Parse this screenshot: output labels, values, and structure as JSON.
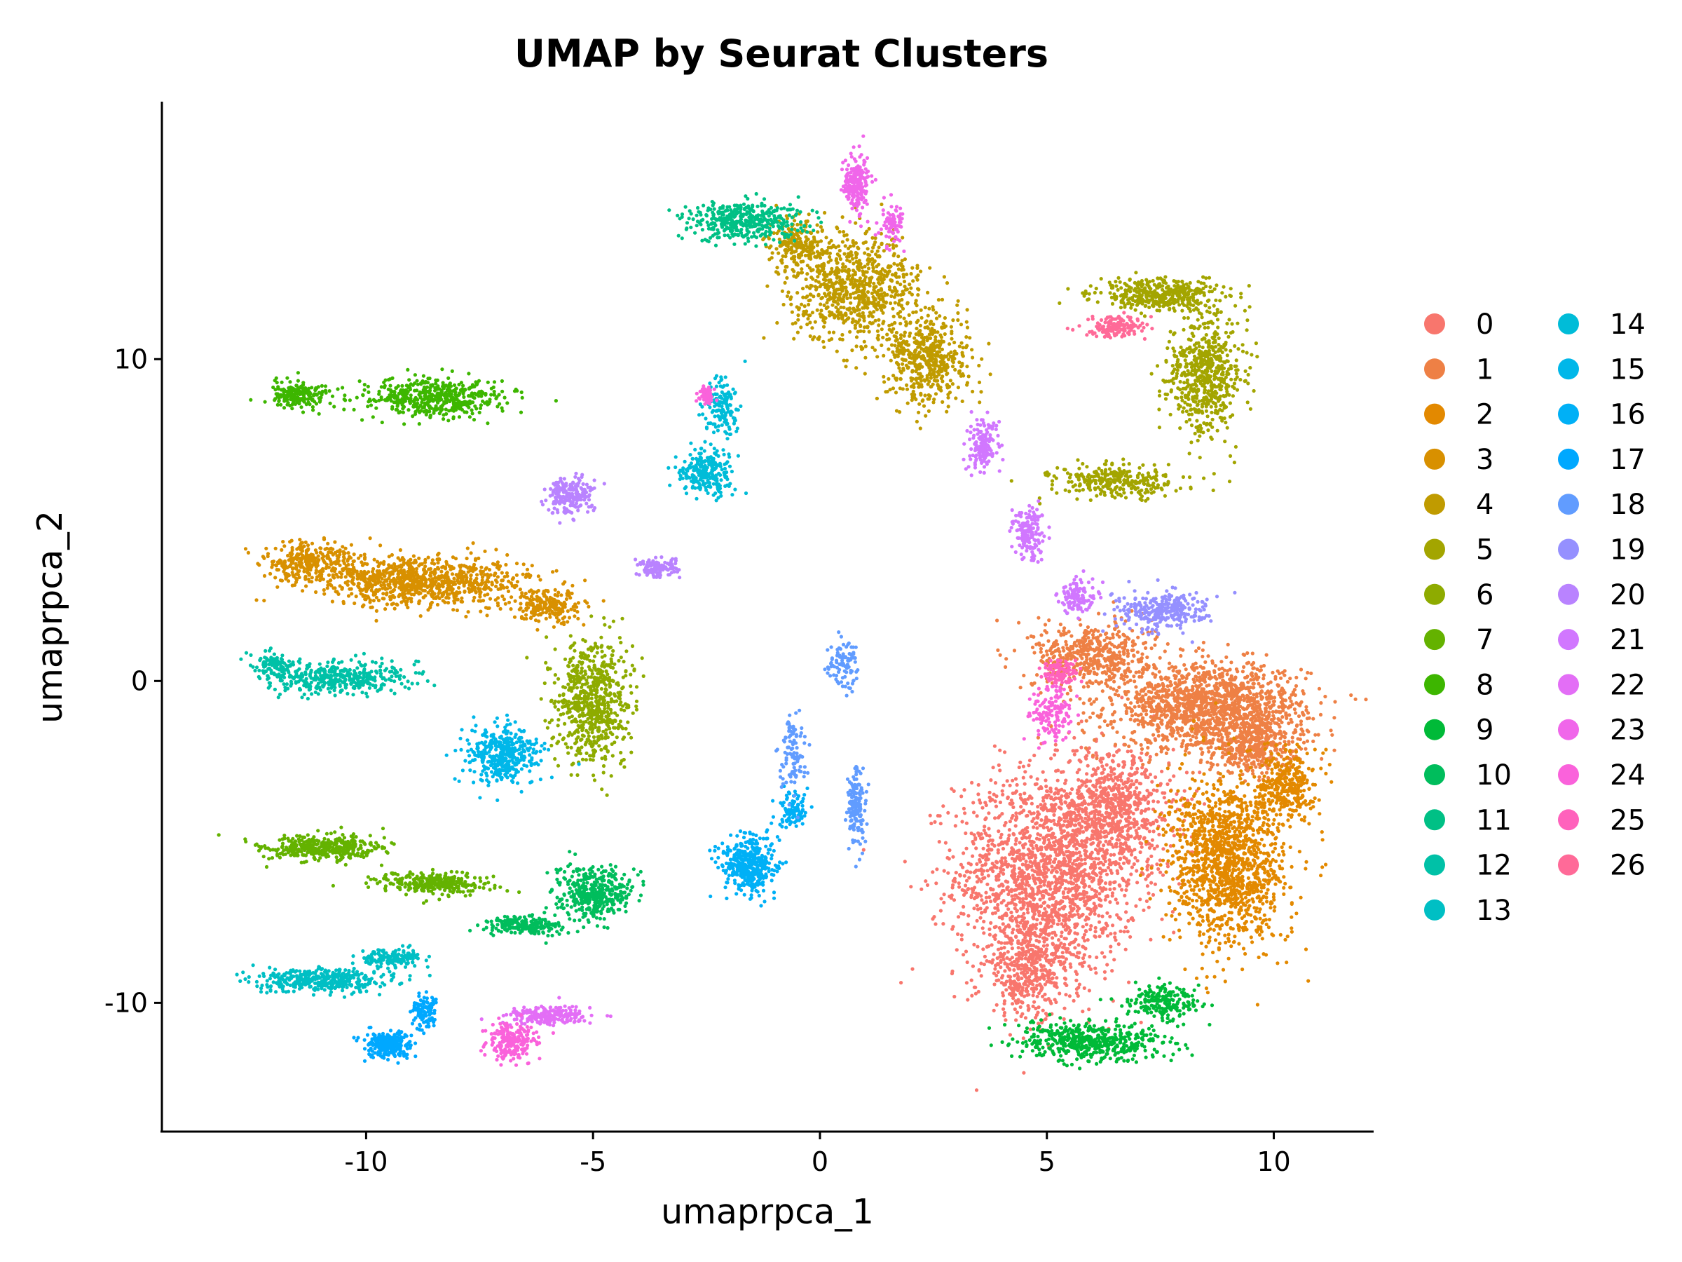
{
  "chart_data": {
    "type": "scatter",
    "title": "UMAP by Seurat Clusters",
    "xlabel": "umaprpca_1",
    "ylabel": "umaprpca_2",
    "xlim": [
      -14.5,
      12.2
    ],
    "ylim": [
      -14,
      18
    ],
    "xticks": [
      -10,
      -5,
      0,
      5,
      10
    ],
    "yticks": [
      -10,
      0,
      10
    ],
    "xtick_labels": [
      "-10",
      "-5",
      "0",
      "5",
      "10"
    ],
    "ytick_labels": [
      "-10",
      "0",
      "10"
    ],
    "grid": false,
    "legend_position": "right",
    "legend_columns": 2,
    "series": [
      {
        "name": "0",
        "color": "#F8766D",
        "blobs": [
          [
            5.0,
            -6.0,
            2.0,
            3.2,
            1800
          ],
          [
            6.5,
            -4.0,
            1.3,
            2.0,
            700
          ],
          [
            4.6,
            -9.0,
            1.0,
            1.5,
            400
          ]
        ]
      },
      {
        "name": "1",
        "color": "#EE8045",
        "blobs": [
          [
            8.6,
            -0.8,
            2.1,
            1.3,
            1500
          ],
          [
            6.0,
            0.8,
            1.3,
            1.0,
            500
          ],
          [
            9.5,
            -2.0,
            1.0,
            0.9,
            400
          ]
        ]
      },
      {
        "name": "2",
        "color": "#E38900",
        "blobs": [
          [
            9.0,
            -5.6,
            1.3,
            2.6,
            1400
          ],
          [
            10.3,
            -3.2,
            0.6,
            1.1,
            300
          ]
        ]
      },
      {
        "name": "3",
        "color": "#D89000",
        "blobs": [
          [
            -8.7,
            3.1,
            2.3,
            0.75,
            900
          ],
          [
            -11.3,
            3.7,
            1.0,
            0.6,
            300
          ],
          [
            -6.0,
            2.3,
            0.8,
            0.5,
            200
          ]
        ]
      },
      {
        "name": "4",
        "color": "#C09B00",
        "blobs": [
          [
            0.8,
            12.2,
            1.4,
            1.6,
            800
          ],
          [
            2.4,
            10.0,
            0.9,
            1.4,
            500
          ],
          [
            -0.5,
            13.6,
            0.6,
            0.8,
            200
          ]
        ]
      },
      {
        "name": "5",
        "color": "#A3A500",
        "blobs": [
          [
            8.5,
            9.5,
            0.8,
            1.8,
            600
          ],
          [
            7.5,
            12.0,
            1.4,
            0.5,
            400
          ],
          [
            6.5,
            6.2,
            1.3,
            0.5,
            300
          ]
        ]
      },
      {
        "name": "6",
        "color": "#8EAB00",
        "blobs": [
          [
            -5.0,
            -0.6,
            0.8,
            1.9,
            700
          ]
        ]
      },
      {
        "name": "7",
        "color": "#64B200",
        "blobs": [
          [
            -11.0,
            -5.2,
            1.3,
            0.4,
            400
          ],
          [
            -8.5,
            -6.3,
            1.2,
            0.35,
            300
          ]
        ]
      },
      {
        "name": "8",
        "color": "#3DB600",
        "blobs": [
          [
            -8.5,
            8.8,
            1.6,
            0.6,
            500
          ],
          [
            -11.5,
            8.9,
            0.7,
            0.4,
            200
          ]
        ]
      },
      {
        "name": "9",
        "color": "#00BA38",
        "blobs": [
          [
            6.0,
            -11.2,
            1.6,
            0.6,
            500
          ],
          [
            7.6,
            -10.0,
            0.8,
            0.5,
            200
          ]
        ]
      },
      {
        "name": "10",
        "color": "#00BD5C",
        "blobs": [
          [
            -5.0,
            -6.6,
            0.8,
            0.8,
            400
          ],
          [
            -6.5,
            -7.6,
            0.9,
            0.3,
            200
          ]
        ]
      },
      {
        "name": "11",
        "color": "#00C085",
        "blobs": [
          [
            -1.7,
            14.3,
            1.3,
            0.6,
            400
          ]
        ]
      },
      {
        "name": "12",
        "color": "#00C1A7",
        "blobs": [
          [
            -10.5,
            0.1,
            1.6,
            0.5,
            400
          ],
          [
            -12.0,
            0.5,
            0.5,
            0.4,
            100
          ]
        ]
      },
      {
        "name": "13",
        "color": "#00BFC4",
        "blobs": [
          [
            -11.0,
            -9.3,
            1.4,
            0.35,
            400
          ],
          [
            -9.5,
            -8.6,
            0.7,
            0.3,
            150
          ]
        ]
      },
      {
        "name": "14",
        "color": "#00BCD8",
        "blobs": [
          [
            -2.5,
            6.5,
            0.6,
            0.7,
            250
          ],
          [
            -2.2,
            8.5,
            0.35,
            0.9,
            150
          ]
        ]
      },
      {
        "name": "15",
        "color": "#00B7E9",
        "blobs": [
          [
            -7.0,
            -2.3,
            0.8,
            0.9,
            400
          ]
        ]
      },
      {
        "name": "16",
        "color": "#00B0F6",
        "blobs": [
          [
            -1.6,
            -5.7,
            0.6,
            0.9,
            400
          ],
          [
            -0.6,
            -4.0,
            0.3,
            0.7,
            100
          ]
        ]
      },
      {
        "name": "17",
        "color": "#00A8FF",
        "blobs": [
          [
            -9.5,
            -11.3,
            0.5,
            0.4,
            250
          ],
          [
            -8.7,
            -10.3,
            0.3,
            0.6,
            100
          ]
        ]
      },
      {
        "name": "18",
        "color": "#619CFF",
        "blobs": [
          [
            0.8,
            -4.0,
            0.2,
            1.3,
            150
          ],
          [
            -0.6,
            -2.3,
            0.3,
            1.1,
            100
          ],
          [
            0.5,
            0.5,
            0.3,
            0.8,
            100
          ]
        ]
      },
      {
        "name": "19",
        "color": "#9590FF",
        "blobs": [
          [
            7.5,
            2.2,
            1.0,
            0.6,
            300
          ]
        ]
      },
      {
        "name": "20",
        "color": "#B983FF",
        "blobs": [
          [
            -5.5,
            5.7,
            0.5,
            0.6,
            200
          ],
          [
            -3.6,
            3.5,
            0.4,
            0.3,
            120
          ]
        ]
      },
      {
        "name": "21",
        "color": "#D177FF",
        "blobs": [
          [
            3.6,
            7.3,
            0.35,
            0.9,
            150
          ],
          [
            4.6,
            4.6,
            0.35,
            0.8,
            150
          ],
          [
            5.7,
            2.6,
            0.4,
            0.5,
            120
          ]
        ]
      },
      {
        "name": "22",
        "color": "#E36EF6",
        "blobs": [
          [
            -6.0,
            -10.4,
            0.9,
            0.3,
            200
          ]
        ]
      },
      {
        "name": "23",
        "color": "#F066EA",
        "blobs": [
          [
            0.8,
            15.5,
            0.3,
            0.9,
            200
          ],
          [
            1.6,
            14.2,
            0.25,
            0.6,
            80
          ]
        ]
      },
      {
        "name": "24",
        "color": "#FA62DB",
        "blobs": [
          [
            -6.8,
            -11.2,
            0.5,
            0.6,
            200
          ],
          [
            5.1,
            -1.0,
            0.4,
            0.9,
            150
          ],
          [
            -2.5,
            8.9,
            0.2,
            0.3,
            60
          ]
        ]
      },
      {
        "name": "25",
        "color": "#FF62BC",
        "blobs": [
          [
            5.3,
            0.3,
            0.4,
            0.4,
            100
          ]
        ]
      },
      {
        "name": "26",
        "color": "#FF6A98",
        "blobs": [
          [
            6.5,
            11.0,
            0.7,
            0.3,
            150
          ]
        ]
      }
    ]
  }
}
